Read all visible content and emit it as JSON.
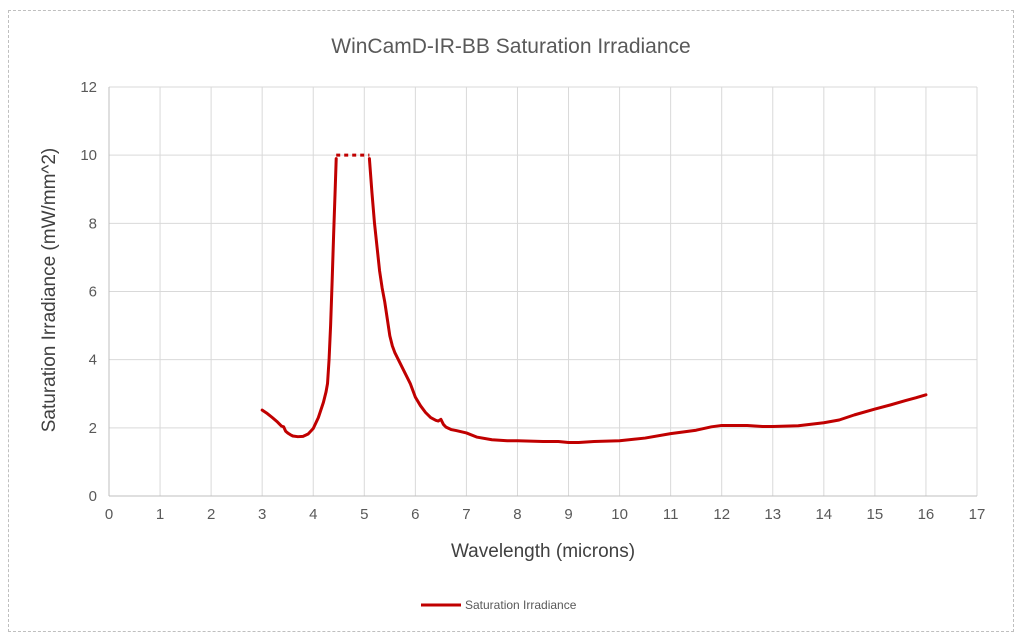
{
  "chart_data": {
    "type": "line",
    "title": "WinCamD-IR-BB Saturation Irradiance",
    "xlabel": "Wavelength (microns)",
    "ylabel": "Saturation Irradiance (mW/mm^2)",
    "xlim": [
      0,
      17
    ],
    "ylim": [
      0,
      12
    ],
    "x_ticks": [
      "0",
      "1",
      "2",
      "3",
      "4",
      "5",
      "6",
      "7",
      "8",
      "9",
      "10",
      "11",
      "12",
      "13",
      "14",
      "15",
      "16",
      "17"
    ],
    "y_ticks": [
      "0",
      "2",
      "4",
      "6",
      "8",
      "10",
      "12"
    ],
    "grid": true,
    "legend_position": "bottom",
    "series": [
      {
        "name": "Saturation Irradiance",
        "color": "#c00000",
        "segments": [
          {
            "style": "solid",
            "points": [
              [
                3.0,
                2.52
              ],
              [
                3.1,
                2.42
              ],
              [
                3.2,
                2.3
              ],
              [
                3.3,
                2.17
              ],
              [
                3.38,
                2.05
              ],
              [
                3.42,
                2.03
              ],
              [
                3.46,
                1.9
              ],
              [
                3.5,
                1.85
              ],
              [
                3.55,
                1.8
              ],
              [
                3.6,
                1.76
              ],
              [
                3.7,
                1.74
              ],
              [
                3.8,
                1.75
              ],
              [
                3.9,
                1.82
              ],
              [
                4.0,
                1.98
              ],
              [
                4.1,
                2.3
              ],
              [
                4.2,
                2.75
              ],
              [
                4.25,
                3.05
              ],
              [
                4.28,
                3.3
              ],
              [
                4.31,
                4.0
              ],
              [
                4.34,
                5.0
              ],
              [
                4.37,
                6.3
              ],
              [
                4.4,
                7.7
              ],
              [
                4.43,
                9.0
              ],
              [
                4.45,
                9.9
              ]
            ]
          },
          {
            "style": "dashed",
            "points": [
              [
                4.45,
                10.0
              ],
              [
                5.1,
                10.0
              ]
            ]
          },
          {
            "style": "solid",
            "points": [
              [
                5.1,
                9.9
              ],
              [
                5.15,
                8.9
              ],
              [
                5.2,
                8.0
              ],
              [
                5.25,
                7.3
              ],
              [
                5.3,
                6.6
              ],
              [
                5.35,
                6.1
              ],
              [
                5.4,
                5.7
              ],
              [
                5.45,
                5.2
              ],
              [
                5.5,
                4.7
              ],
              [
                5.55,
                4.4
              ],
              [
                5.6,
                4.2
              ],
              [
                5.7,
                3.9
              ],
              [
                5.8,
                3.6
              ],
              [
                5.9,
                3.3
              ],
              [
                6.0,
                2.9
              ],
              [
                6.1,
                2.65
              ],
              [
                6.2,
                2.45
              ],
              [
                6.3,
                2.3
              ],
              [
                6.4,
                2.22
              ],
              [
                6.45,
                2.2
              ],
              [
                6.5,
                2.25
              ],
              [
                6.55,
                2.1
              ],
              [
                6.6,
                2.02
              ],
              [
                6.7,
                1.95
              ],
              [
                6.8,
                1.92
              ],
              [
                7.0,
                1.85
              ],
              [
                7.2,
                1.73
              ],
              [
                7.5,
                1.65
              ],
              [
                7.8,
                1.62
              ],
              [
                8.0,
                1.62
              ],
              [
                8.5,
                1.6
              ],
              [
                8.8,
                1.6
              ],
              [
                9.0,
                1.57
              ],
              [
                9.2,
                1.57
              ],
              [
                9.5,
                1.6
              ],
              [
                10.0,
                1.62
              ],
              [
                10.5,
                1.7
              ],
              [
                11.0,
                1.83
              ],
              [
                11.5,
                1.93
              ],
              [
                11.8,
                2.03
              ],
              [
                12.0,
                2.07
              ],
              [
                12.5,
                2.07
              ],
              [
                12.8,
                2.04
              ],
              [
                13.0,
                2.04
              ],
              [
                13.5,
                2.06
              ],
              [
                14.0,
                2.15
              ],
              [
                14.3,
                2.23
              ],
              [
                14.6,
                2.38
              ],
              [
                15.0,
                2.55
              ],
              [
                15.3,
                2.67
              ],
              [
                15.6,
                2.8
              ],
              [
                15.8,
                2.88
              ],
              [
                16.0,
                2.97
              ]
            ]
          }
        ]
      }
    ]
  }
}
